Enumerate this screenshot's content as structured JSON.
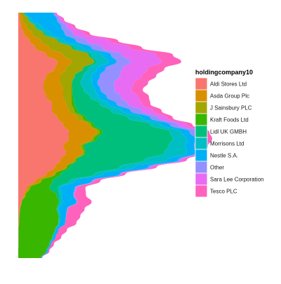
{
  "chart_data": {
    "type": "area",
    "orientation": "horizontal-stream",
    "title": "",
    "xlabel": "",
    "ylabel": "",
    "grid": false,
    "legend": {
      "title": "holdingcompany10",
      "placement": "right"
    },
    "y": [
      0,
      1,
      2,
      3,
      4,
      5,
      6,
      7,
      8,
      9,
      10,
      11,
      12,
      13,
      14,
      15,
      16,
      17,
      18,
      19,
      20,
      21,
      22,
      23,
      24,
      25,
      26,
      27,
      28,
      29,
      30,
      31,
      32,
      33,
      34,
      35
    ],
    "series": [
      {
        "name": "Aldi Stores Ltd",
        "color": "#F8766D",
        "values": [
          0.4,
          0.6,
          1,
          2,
          4,
          6,
          10,
          14,
          13,
          10,
          9,
          9,
          10,
          12,
          12,
          14,
          16,
          18,
          18,
          16,
          17,
          15,
          13,
          10,
          6,
          3,
          2,
          1,
          0.5,
          0.3,
          0.2,
          0.1,
          0.1,
          0.1,
          0,
          0
        ]
      },
      {
        "name": "Asda Group Plc",
        "color": "#D89000",
        "values": [
          0.5,
          1,
          2,
          3,
          4,
          5,
          6,
          5,
          4,
          5,
          6,
          7,
          6,
          5,
          6,
          7,
          9,
          10,
          8,
          6,
          6,
          5,
          4,
          3,
          2,
          1,
          0.5,
          0.3,
          0.2,
          0.1,
          0.1,
          0,
          0,
          0,
          0,
          0
        ]
      },
      {
        "name": "J Sainsbury PLC",
        "color": "#A3A500",
        "values": [
          1,
          2,
          3,
          4,
          6,
          8,
          9,
          8,
          6,
          5,
          4,
          3,
          3,
          2,
          2,
          2,
          1,
          1,
          1,
          1,
          0.5,
          0.5,
          0.3,
          0.2,
          0.2,
          0.1,
          0.1,
          0,
          0,
          0,
          0,
          0,
          0,
          0,
          0,
          0
        ]
      },
      {
        "name": "Kraft Foods Ltd",
        "color": "#39B600",
        "values": [
          0,
          0,
          0,
          0,
          0,
          0,
          0,
          0,
          0,
          0.1,
          0.2,
          0.3,
          0.5,
          1,
          1,
          1,
          1,
          1,
          1,
          0.5,
          0.5,
          0.5,
          1,
          2,
          4,
          7,
          11,
          13,
          13,
          14,
          14,
          13,
          12,
          11,
          10,
          8
        ]
      },
      {
        "name": "Lidl UK GMBH",
        "color": "#00BF7D",
        "values": [
          0.1,
          0.2,
          0.3,
          0.5,
          0.5,
          1,
          1,
          1,
          2,
          3,
          3,
          4,
          6,
          9,
          12,
          15,
          20,
          24,
          27,
          30,
          28,
          24,
          18,
          12,
          6,
          3,
          1,
          0.5,
          0.2,
          0.1,
          0.1,
          0,
          0,
          0,
          0,
          0
        ]
      },
      {
        "name": "Morrisons Ltd",
        "color": "#00BFC4",
        "values": [
          0.5,
          1,
          2,
          2,
          2,
          3,
          4,
          4,
          3,
          3,
          4,
          4,
          3,
          3,
          4,
          5,
          4,
          4,
          5,
          6,
          8,
          8,
          5,
          3,
          2,
          1,
          1,
          1,
          0.5,
          0.5,
          0.3,
          0.2,
          0.2,
          0.1,
          0.1,
          0
        ]
      },
      {
        "name": "Nestle S.A.",
        "color": "#00B0F6",
        "values": [
          10,
          9,
          7,
          5,
          4,
          3,
          3,
          3,
          3,
          3,
          2,
          2,
          3,
          3,
          3,
          3,
          3,
          3,
          3,
          3,
          3,
          4,
          5,
          6,
          6,
          5,
          4,
          5,
          3,
          2,
          2,
          1,
          1,
          0.5,
          0.5,
          0.3
        ]
      },
      {
        "name": "Other",
        "color": "#9590FF",
        "values": [
          0.5,
          1,
          2,
          3,
          4,
          4,
          4,
          5,
          6,
          7,
          6,
          5,
          5,
          4,
          4,
          3,
          3,
          3,
          2,
          2,
          1,
          1,
          1,
          0.5,
          0.5,
          0.3,
          0.2,
          0.1,
          0.1,
          0,
          0,
          0,
          0,
          0,
          0,
          0
        ]
      },
      {
        "name": "Sara Lee Corporation",
        "color": "#E76BF3",
        "values": [
          0.5,
          1,
          2,
          4,
          8,
          10,
          12,
          11,
          9,
          8,
          7,
          6,
          6,
          5,
          4,
          3,
          3,
          2,
          2,
          1,
          1,
          1,
          1,
          0.5,
          0.5,
          0.5,
          0.3,
          0.2,
          0.1,
          0.1,
          0,
          0,
          0,
          0,
          0,
          0
        ]
      },
      {
        "name": "Tesco PLC",
        "color": "#FF62BC",
        "values": [
          0.2,
          0.5,
          1,
          2,
          3,
          4,
          6,
          7,
          6,
          5,
          5,
          4,
          4,
          3,
          3,
          2,
          2,
          2,
          2,
          2,
          1,
          1,
          1,
          1,
          2,
          3,
          4,
          5,
          6,
          5,
          4,
          3,
          2,
          1,
          0.5,
          0.2
        ]
      }
    ]
  }
}
